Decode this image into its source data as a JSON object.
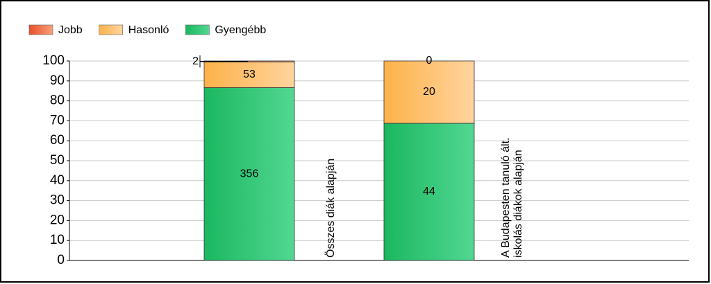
{
  "chart_data": {
    "type": "bar",
    "stacking": "percent",
    "categories": [
      [
        "Összes diák alapján"
      ],
      [
        "A Budapesten tanuló ált.",
        "iskolás diákok alapján"
      ]
    ],
    "series": [
      {
        "name": "Jobb",
        "color": [
          "#e9502b",
          "#f8a07a"
        ],
        "values": [
          2,
          0
        ]
      },
      {
        "name": "Hasonló",
        "color": [
          "#fdb24a",
          "#fed49e"
        ],
        "values": [
          53,
          20
        ]
      },
      {
        "name": "Gyengébb",
        "color": [
          "#1bb760",
          "#52d792"
        ],
        "values": [
          356,
          44
        ]
      }
    ],
    "ylim": [
      0,
      100
    ],
    "yticks": [
      0,
      10,
      20,
      30,
      40,
      50,
      60,
      70,
      80,
      90,
      100
    ],
    "grid": true,
    "legend": "top-left"
  }
}
